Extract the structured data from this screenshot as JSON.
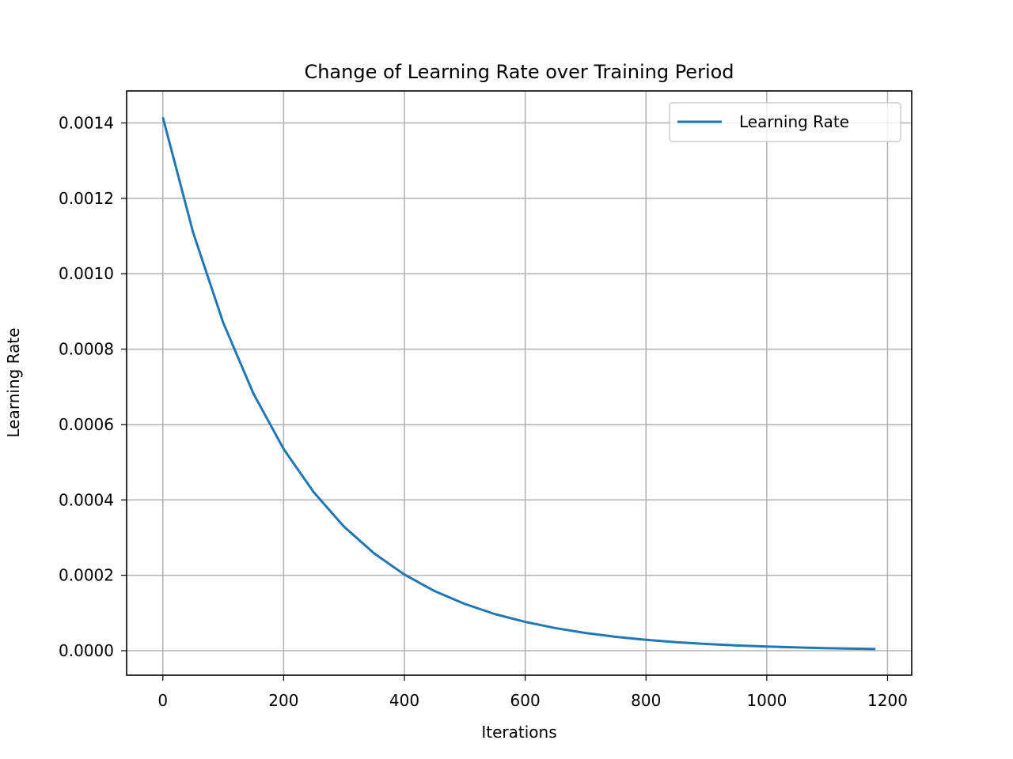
{
  "chart_data": {
    "type": "line",
    "title": "Change of Learning Rate over Training Period",
    "xlabel": "Iterations",
    "ylabel": "Learning Rate",
    "xlim": [
      -60,
      1240
    ],
    "ylim": [
      -6.5e-05,
      0.001485
    ],
    "x_ticks": [
      0,
      200,
      400,
      600,
      800,
      1000,
      1200
    ],
    "x_tick_labels": [
      "0",
      "200",
      "400",
      "600",
      "800",
      "1000",
      "1200"
    ],
    "y_ticks": [
      0,
      0.0002,
      0.0004,
      0.0006,
      0.0008,
      0.001,
      0.0012,
      0.0014
    ],
    "y_tick_labels": [
      "0.0000",
      "0.0002",
      "0.0004",
      "0.0006",
      "0.0008",
      "0.0010",
      "0.0012",
      "0.0014"
    ],
    "grid": true,
    "legend": {
      "position": "top-right",
      "entries": [
        "Learning Rate"
      ]
    },
    "series": [
      {
        "name": "Learning Rate",
        "color": "#1f77b4",
        "x": [
          0,
          50,
          100,
          150,
          200,
          250,
          300,
          350,
          400,
          450,
          500,
          550,
          600,
          650,
          700,
          750,
          800,
          850,
          900,
          950,
          1000,
          1050,
          1100,
          1150,
          1180
        ],
        "y": [
          0.001415,
          0.00111,
          0.00087,
          0.000682,
          0.000535,
          0.00042,
          0.000329,
          0.000258,
          0.000202,
          0.000158,
          0.000124,
          9.7e-05,
          7.64e-05,
          5.99e-05,
          4.7e-05,
          3.68e-05,
          2.89e-05,
          2.26e-05,
          1.78e-05,
          1.39e-05,
          1.09e-05,
          8.6e-06,
          6.7e-06,
          5.3e-06,
          4.6e-06
        ]
      }
    ]
  }
}
